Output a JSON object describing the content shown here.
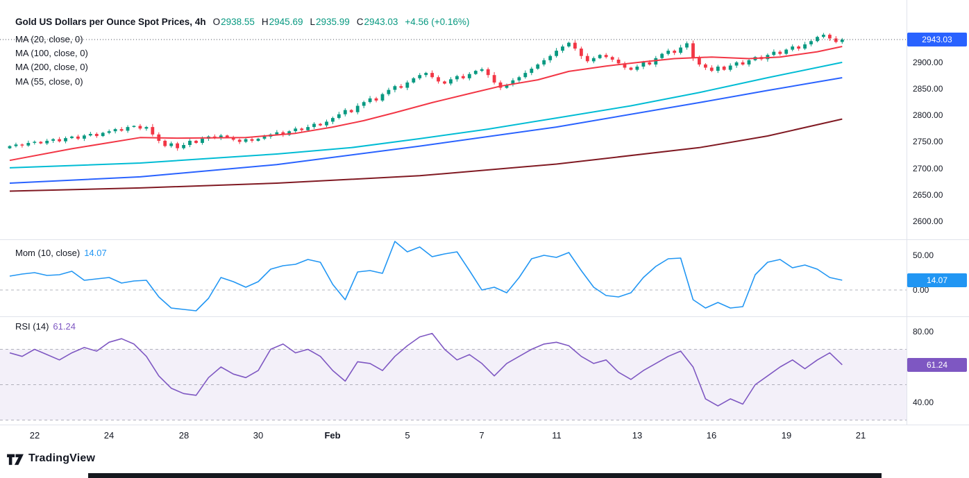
{
  "header": {
    "title": "Gold US Dollars per Ounce Spot Prices, 4h",
    "ohlc": [
      {
        "key": "O",
        "value": "2938.55"
      },
      {
        "key": "H",
        "value": "2945.69"
      },
      {
        "key": "L",
        "value": "2935.99"
      },
      {
        "key": "C",
        "value": "2943.03"
      }
    ],
    "change": "+4.56 (+0.16%)"
  },
  "legend": {
    "ma_rows": [
      "MA (20, close, 0)",
      "MA (100, close, 0)",
      "MA (200, close, 0)",
      "MA (55, close, 0)"
    ],
    "mom_label": "Mom (10, close)",
    "mom_value": "14.07",
    "rsi_label": "RSI (14)",
    "rsi_value": "61.24"
  },
  "axes": {
    "price_labels": [
      "2900.00",
      "2850.00",
      "2800.00",
      "2750.00",
      "2700.00",
      "2650.00",
      "2600.00"
    ],
    "mom_labels": [
      {
        "text": "50.00",
        "value": 50
      },
      {
        "text": "0.00",
        "value": 0
      }
    ],
    "rsi_labels": [
      {
        "text": "80.00",
        "value": 80
      },
      {
        "text": "40.00",
        "value": 40
      }
    ],
    "time_ticks": [
      {
        "label": "22",
        "i": 4
      },
      {
        "label": "24",
        "i": 16
      },
      {
        "label": "28",
        "i": 28
      },
      {
        "label": "30",
        "i": 40
      },
      {
        "label": "Feb",
        "i": 52,
        "bold": true
      },
      {
        "label": "5",
        "i": 64
      },
      {
        "label": "7",
        "i": 76
      },
      {
        "label": "11",
        "i": 88
      },
      {
        "label": "13",
        "i": 101
      },
      {
        "label": "16",
        "i": 113
      },
      {
        "label": "19",
        "i": 125
      },
      {
        "label": "21",
        "i": 137
      }
    ]
  },
  "badges": {
    "price": "2943.03",
    "mom": "14.07",
    "rsi": "61.24"
  },
  "footer": {
    "brand": "TradingView"
  },
  "colors": {
    "up": "#089981",
    "down": "#F23645",
    "ma20": "#F23645",
    "ma55": "#00BCD4",
    "ma100": "#2962FF",
    "ma200": "#801922",
    "mom": "#2196F3",
    "rsi": "#7E57C2",
    "price_badge": "#2962FF",
    "text": "#131722",
    "grid": "#e0e3eb"
  },
  "chart_data": {
    "type": "candlestick",
    "title": "Gold US Dollars per Ounce Spot Prices, 4h",
    "x_tick_labels": [
      "22",
      "24",
      "28",
      "30",
      "Feb",
      "5",
      "7",
      "11",
      "13",
      "16",
      "19",
      "21"
    ],
    "y_axis_range": [
      2600,
      2960
    ],
    "panels": [
      {
        "type": "candlestick",
        "name": "Gold US Dollars per Ounce Spot Prices",
        "timeframe": "4h",
        "current": {
          "o": 2938.55,
          "h": 2945.69,
          "l": 2935.99,
          "c": 2943.03,
          "change": 4.56,
          "change_pct": 0.16
        },
        "first_open": 2738,
        "closes": [
          2742,
          2745,
          2743,
          2748,
          2750,
          2747,
          2752,
          2755,
          2751,
          2757,
          2760,
          2756,
          2762,
          2765,
          2761,
          2767,
          2770,
          2774,
          2771,
          2778,
          2780,
          2775,
          2778,
          2764,
          2752,
          2742,
          2747,
          2738,
          2744,
          2752,
          2748,
          2756,
          2760,
          2757,
          2762,
          2758,
          2754,
          2750,
          2755,
          2752,
          2756,
          2760,
          2764,
          2768,
          2763,
          2770,
          2775,
          2772,
          2778,
          2784,
          2781,
          2788,
          2795,
          2802,
          2810,
          2806,
          2818,
          2825,
          2832,
          2828,
          2840,
          2848,
          2855,
          2852,
          2862,
          2870,
          2876,
          2880,
          2872,
          2864,
          2860,
          2868,
          2874,
          2870,
          2878,
          2884,
          2887,
          2876,
          2862,
          2852,
          2858,
          2866,
          2872,
          2880,
          2888,
          2896,
          2904,
          2912,
          2922,
          2930,
          2937,
          2926,
          2912,
          2902,
          2908,
          2914,
          2910,
          2905,
          2898,
          2890,
          2886,
          2892,
          2900,
          2896,
          2908,
          2916,
          2922,
          2918,
          2928,
          2936,
          2908,
          2896,
          2890,
          2884,
          2892,
          2886,
          2894,
          2900,
          2896,
          2904,
          2910,
          2906,
          2914,
          2920,
          2916,
          2924,
          2930,
          2926,
          2934,
          2940,
          2948,
          2952,
          2945,
          2938.5,
          2943.03
        ],
        "moving_averages": [
          {
            "name": "MA (20, close, 0)",
            "color": "#F23645",
            "points": [
              [
                0,
                2715
              ],
              [
                10,
                2737
              ],
              [
                21,
                2758
              ],
              [
                27,
                2757
              ],
              [
                38,
                2758
              ],
              [
                46,
                2766
              ],
              [
                52,
                2778
              ],
              [
                57,
                2790
              ],
              [
                62,
                2805
              ],
              [
                68,
                2824
              ],
              [
                74,
                2841
              ],
              [
                79,
                2855
              ],
              [
                85,
                2867
              ],
              [
                90,
                2883
              ],
              [
                96,
                2893
              ],
              [
                102,
                2901
              ],
              [
                107,
                2907
              ],
              [
                113,
                2910
              ],
              [
                119,
                2907
              ],
              [
                124,
                2910
              ],
              [
                130,
                2920
              ],
              [
                134,
                2930
              ]
            ]
          },
          {
            "name": "MA (100, close, 0)",
            "color": "#2962FF",
            "points": [
              [
                0,
                2672
              ],
              [
                21,
                2684
              ],
              [
                43,
                2707
              ],
              [
                66,
                2742
              ],
              [
                88,
                2778
              ],
              [
                111,
                2824
              ],
              [
                122,
                2847
              ],
              [
                134,
                2871
              ]
            ]
          },
          {
            "name": "MA (200, close, 0)",
            "color": "#801922",
            "points": [
              [
                0,
                2657
              ],
              [
                21,
                2663
              ],
              [
                43,
                2672
              ],
              [
                66,
                2686
              ],
              [
                88,
                2708
              ],
              [
                111,
                2739
              ],
              [
                122,
                2761
              ],
              [
                134,
                2793
              ]
            ]
          },
          {
            "name": "MA (55, close, 0)",
            "color": "#00BCD4",
            "points": [
              [
                0,
                2701
              ],
              [
                21,
                2710
              ],
              [
                43,
                2727
              ],
              [
                55,
                2739
              ],
              [
                66,
                2756
              ],
              [
                77,
                2774
              ],
              [
                88,
                2795
              ],
              [
                100,
                2818
              ],
              [
                111,
                2843
              ],
              [
                122,
                2871
              ],
              [
                134,
                2900
              ]
            ]
          }
        ]
      },
      {
        "type": "line",
        "name": "Mom (10, close)",
        "color": "#2196F3",
        "current": 14.07,
        "sample_step": 2,
        "values": [
          20,
          23,
          25,
          21,
          22,
          27,
          14,
          16,
          18,
          10,
          13,
          14,
          -10,
          -26,
          -28,
          -30,
          -12,
          18,
          12,
          4,
          12,
          30,
          35,
          37,
          44,
          40,
          8,
          -14,
          26,
          28,
          24,
          70,
          55,
          62,
          48,
          52,
          55,
          28,
          0,
          4,
          -4,
          18,
          45,
          50,
          47,
          54,
          28,
          4,
          -8,
          -10,
          -4,
          18,
          34,
          45,
          46,
          -14,
          -26,
          -18,
          -26,
          -24,
          22,
          40,
          44,
          32,
          36,
          30,
          18,
          14.07
        ]
      },
      {
        "type": "line",
        "name": "RSI (14)",
        "color": "#7E57C2",
        "current": 61.24,
        "sample_step": 2,
        "bands": [
          70,
          50,
          30
        ],
        "band_fill_range": [
          30,
          70
        ],
        "values": [
          68,
          66,
          70,
          67,
          64,
          68,
          71,
          69,
          74,
          76,
          73,
          66,
          55,
          48,
          45,
          44,
          54,
          60,
          56,
          54,
          58,
          70,
          73,
          68,
          70,
          66,
          58,
          52,
          63,
          62,
          58,
          66,
          72,
          77,
          79,
          70,
          64,
          67,
          62,
          55,
          62,
          66,
          70,
          73,
          74,
          72,
          66,
          62,
          64,
          57,
          53,
          58,
          62,
          66,
          69,
          60,
          42,
          38,
          42,
          39,
          50,
          55,
          60,
          64,
          59,
          64,
          68,
          61.24
        ]
      }
    ]
  }
}
